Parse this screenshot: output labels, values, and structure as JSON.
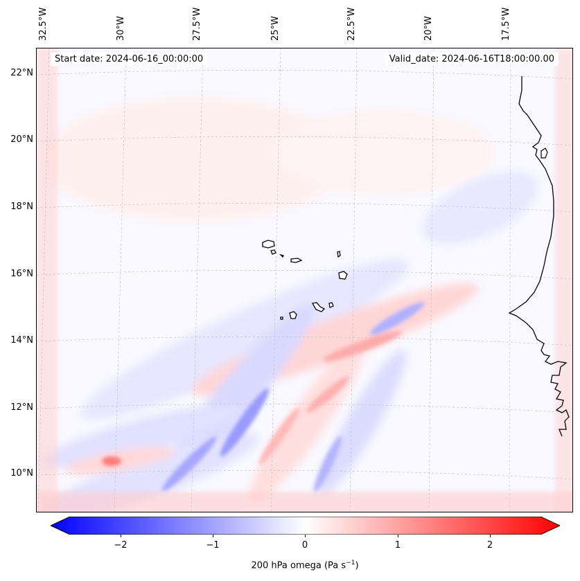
{
  "map": {
    "start_date": "Start date: 2024-06-16_00:00:00",
    "valid_date": "Valid_date: 2024-06-16T18:00:00.00",
    "lon_labels": [
      "32.5°W",
      "30°W",
      "27.5°W",
      "25°W",
      "22.5°W",
      "20°W",
      "17.5°W"
    ],
    "lat_labels": [
      "22°N",
      "20°N",
      "18°N",
      "16°N",
      "14°N",
      "12°N",
      "10°N"
    ],
    "field": "200 hPa omega",
    "islands": "Cape Verde",
    "coast": "West Africa"
  },
  "colorbar": {
    "ticks": [
      "−2",
      "−1",
      "0",
      "1",
      "2"
    ],
    "label": "200 hPa omega (Pa s",
    "label_sup": "−1",
    "label_tail": ")",
    "range": [
      -2.7,
      2.7
    ],
    "colors": {
      "negative": "#0000ff",
      "zero": "#ffffff",
      "positive": "#ff0000"
    }
  }
}
